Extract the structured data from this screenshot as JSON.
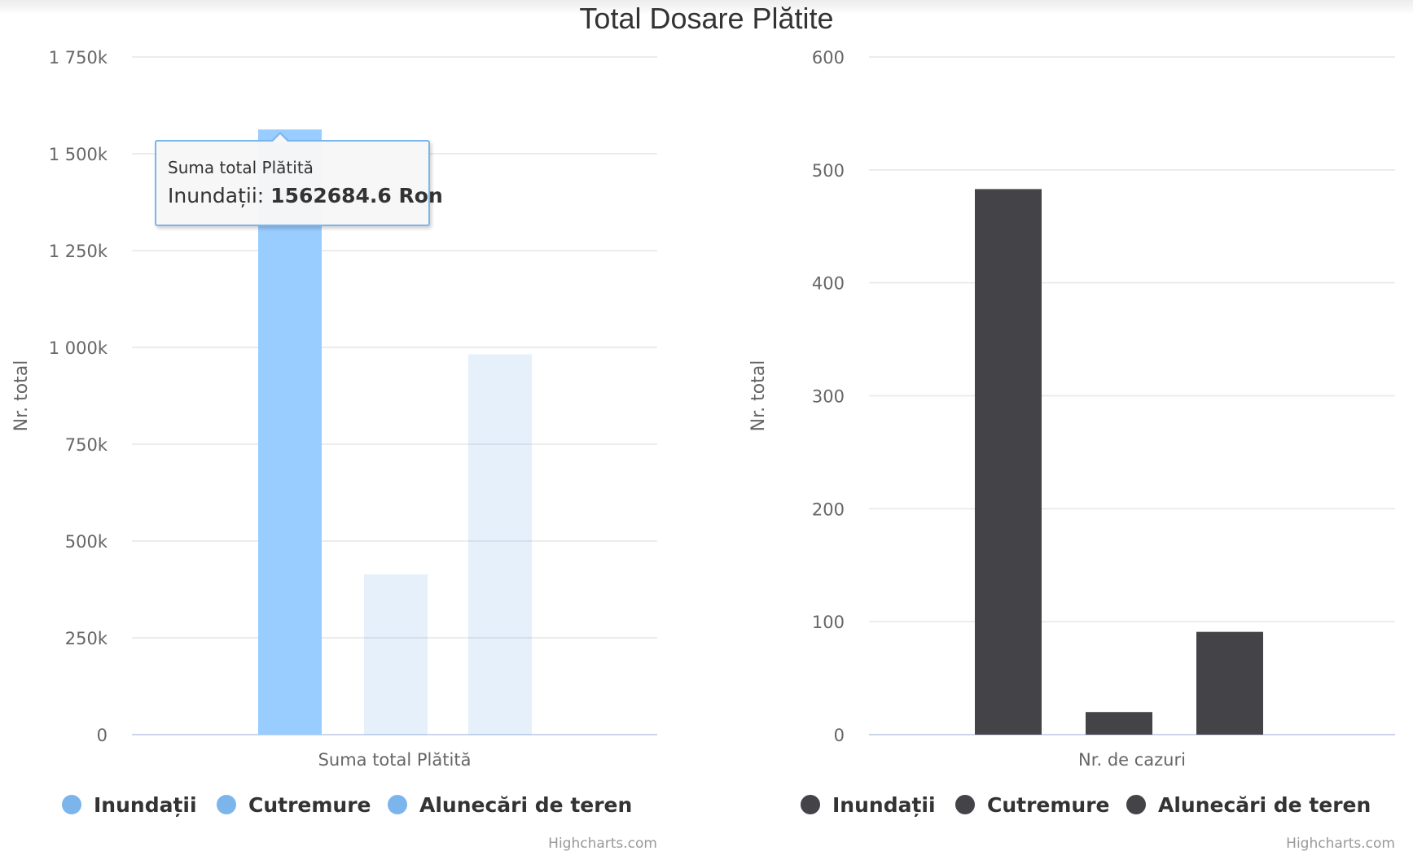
{
  "title": "Total Dosare Plătite",
  "chart_data": [
    {
      "type": "bar",
      "categories": [
        "Suma total Plătită"
      ],
      "series": [
        {
          "name": "Inundații",
          "values": [
            1562684.6
          ],
          "color": "#7cb5ec"
        },
        {
          "name": "Cutremure",
          "values": [
            414000
          ],
          "color": "#7cb5ec"
        },
        {
          "name": "Alunecări de teren",
          "values": [
            982000
          ],
          "color": "#7cb5ec"
        }
      ],
      "hover_series": "Inundații",
      "xlabel": "Suma total Plătită",
      "ylabel": "Nr. total",
      "ylim": [
        0,
        1750000
      ],
      "yticks": [
        {
          "value": 0,
          "label": "0"
        },
        {
          "value": 250000,
          "label": "250k"
        },
        {
          "value": 500000,
          "label": "500k"
        },
        {
          "value": 750000,
          "label": "750k"
        },
        {
          "value": 1000000,
          "label": "1 000k"
        },
        {
          "value": 1250000,
          "label": "1 250k"
        },
        {
          "value": 1500000,
          "label": "1 500k"
        },
        {
          "value": 1750000,
          "label": "1 750k"
        }
      ],
      "grid": true,
      "legend_placement": "bottom",
      "credits": "Highcharts.com",
      "tooltip": {
        "header": "Suma total Plătită",
        "series": "Inundații",
        "value": "1562684.6 Ron"
      }
    },
    {
      "type": "bar",
      "categories": [
        "Nr. de cazuri"
      ],
      "series": [
        {
          "name": "Inundații",
          "values": [
            483
          ],
          "color": "#434348"
        },
        {
          "name": "Cutremure",
          "values": [
            20
          ],
          "color": "#434348"
        },
        {
          "name": "Alunecări de teren",
          "values": [
            91
          ],
          "color": "#434348"
        }
      ],
      "xlabel": "Nr. de cazuri",
      "ylabel": "Nr. total",
      "ylim": [
        0,
        600
      ],
      "yticks": [
        {
          "value": 0,
          "label": "0"
        },
        {
          "value": 100,
          "label": "100"
        },
        {
          "value": 200,
          "label": "200"
        },
        {
          "value": 300,
          "label": "300"
        },
        {
          "value": 400,
          "label": "400"
        },
        {
          "value": 500,
          "label": "500"
        },
        {
          "value": 600,
          "label": "600"
        }
      ],
      "grid": true,
      "legend_placement": "bottom",
      "credits": "Highcharts.com"
    }
  ]
}
